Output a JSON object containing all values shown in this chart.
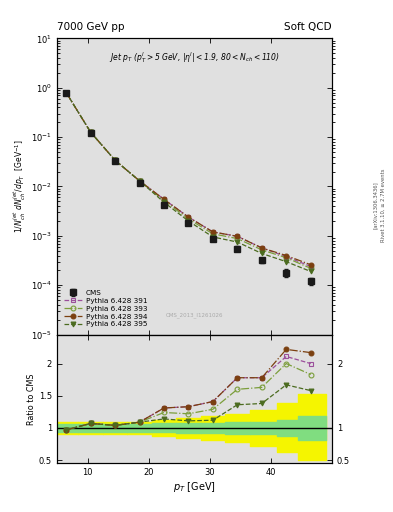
{
  "title_left": "7000 GeV pp",
  "title_right": "Soft QCD",
  "inner_title": "Jet $p_T$ ($p_T^l$>5 GeV, $\\eta^l$|<1.9, 80<$N_{ch}$<110)",
  "cms_label": "CMS_2013_I1261026",
  "xlabel": "$p_T$ [GeV]",
  "ylabel_main": "$1/N_{ch}^{jet}\\,dN_{ch}^{jet}/dp_T$ [GeV$^{-1}$]",
  "ylabel_ratio": "Ratio to CMS",
  "right_text1": "Rivet 3.1.10, ≥ 2.7M events",
  "right_text2": "[arXiv:1306.3436]",
  "pt_bins": [
    6.5,
    10.5,
    14.5,
    18.5,
    22.5,
    26.5,
    30.5,
    34.5,
    38.5,
    42.5,
    46.5
  ],
  "cms_values": [
    0.78,
    0.12,
    0.033,
    0.012,
    0.0042,
    0.0018,
    0.00085,
    0.00055,
    0.00032,
    0.00018,
    0.00012
  ],
  "cms_errors_hi": [
    0.04,
    0.007,
    0.002,
    0.001,
    0.0003,
    0.00015,
    8e-05,
    6e-05,
    4e-05,
    3e-05,
    2e-05
  ],
  "cms_errors_lo": [
    0.04,
    0.007,
    0.002,
    0.001,
    0.0003,
    0.00015,
    8e-05,
    6e-05,
    4e-05,
    3e-05,
    2e-05
  ],
  "py391_values": [
    0.8,
    0.126,
    0.034,
    0.013,
    0.0055,
    0.0024,
    0.0012,
    0.00098,
    0.00057,
    0.00038,
    0.00024
  ],
  "py393_values": [
    0.8,
    0.126,
    0.034,
    0.013,
    0.0052,
    0.0022,
    0.0011,
    0.00088,
    0.00052,
    0.00036,
    0.00022
  ],
  "py394_values": [
    0.8,
    0.126,
    0.034,
    0.013,
    0.0055,
    0.0024,
    0.0012,
    0.00098,
    0.00057,
    0.0004,
    0.00026
  ],
  "py395_values": [
    0.8,
    0.126,
    0.034,
    0.013,
    0.0048,
    0.002,
    0.00095,
    0.00075,
    0.00044,
    0.0003,
    0.00019
  ],
  "ratio391": [
    0.97,
    1.07,
    1.04,
    1.09,
    1.31,
    1.33,
    1.41,
    1.78,
    1.78,
    2.11,
    2.0
  ],
  "ratio393": [
    0.97,
    1.07,
    1.04,
    1.09,
    1.24,
    1.22,
    1.29,
    1.6,
    1.63,
    2.0,
    1.83
  ],
  "ratio394": [
    0.97,
    1.07,
    1.04,
    1.09,
    1.31,
    1.33,
    1.41,
    1.78,
    1.78,
    2.22,
    2.17
  ],
  "ratio395": [
    0.97,
    1.07,
    1.04,
    1.09,
    1.14,
    1.11,
    1.12,
    1.36,
    1.38,
    1.67,
    1.58
  ],
  "band_edges": [
    5.0,
    8.5,
    12.5,
    16.5,
    20.5,
    24.5,
    28.5,
    32.5,
    36.5,
    41.0,
    44.5,
    49.0
  ],
  "green_band_hi": [
    1.06,
    1.06,
    1.06,
    1.06,
    1.07,
    1.08,
    1.08,
    1.09,
    1.1,
    1.13,
    1.18
  ],
  "green_band_lo": [
    0.94,
    0.94,
    0.94,
    0.94,
    0.93,
    0.92,
    0.92,
    0.91,
    0.9,
    0.87,
    0.82
  ],
  "yellow_band_hi": [
    1.1,
    1.1,
    1.1,
    1.1,
    1.12,
    1.15,
    1.18,
    1.22,
    1.28,
    1.38,
    1.52
  ],
  "yellow_band_lo": [
    0.9,
    0.9,
    0.9,
    0.9,
    0.88,
    0.85,
    0.82,
    0.78,
    0.72,
    0.62,
    0.5
  ],
  "color391": "#9B4F9B",
  "color393": "#7B9E3B",
  "color394": "#7B4010",
  "color395": "#4B6B1F",
  "cms_color": "#1a1a1a",
  "xlim": [
    5,
    50
  ],
  "xticks": [
    10,
    20,
    30,
    40
  ],
  "ylim_main": [
    1e-05,
    10
  ],
  "ylim_ratio": [
    0.45,
    2.45
  ],
  "yticks_ratio": [
    0.5,
    1.0,
    1.5,
    2.0
  ],
  "plot_bg": "#e0e0e0",
  "fig_bg": "#ffffff"
}
